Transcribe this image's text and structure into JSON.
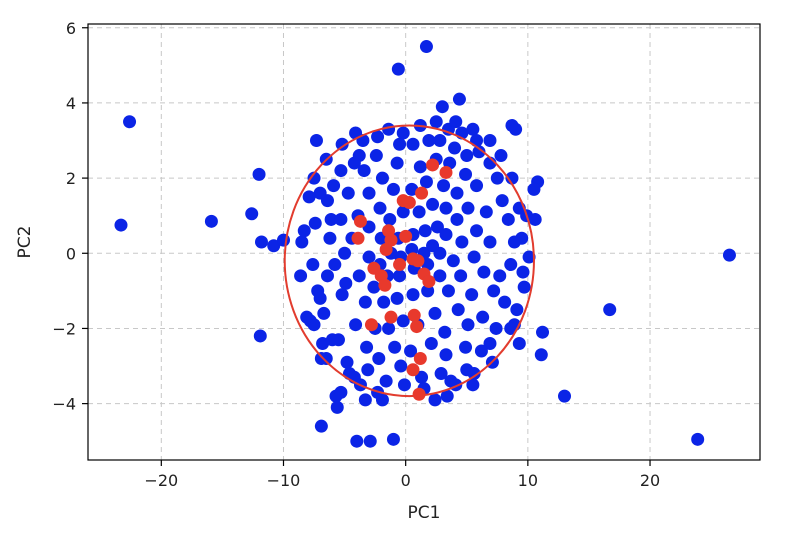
{
  "chart_data": {
    "type": "scatter",
    "title": "",
    "xlabel": "PC1",
    "ylabel": "PC2",
    "xlim": [
      -26,
      29
    ],
    "ylim": [
      -5.5,
      6.1
    ],
    "xticks": [
      -20,
      -10,
      0,
      10,
      20
    ],
    "yticks": [
      -4,
      -2,
      0,
      2,
      4,
      6
    ],
    "xtick_labels": [
      "−20",
      "−10",
      "0",
      "10",
      "20"
    ],
    "ytick_labels": [
      "−4",
      "−2",
      "0",
      "2",
      "4",
      "6"
    ],
    "grid": true,
    "colors": {
      "series_a": "#0b24e6",
      "series_b": "#e8392c",
      "ellipse": "#e23c2e"
    },
    "ellipse": {
      "center": [
        0.3,
        -0.2
      ],
      "semi_axis_x": 10.2,
      "semi_axis_y": 3.6
    },
    "series": [
      {
        "color": "#0b24e6",
        "points": [
          [
            1.7,
            5.5
          ],
          [
            -0.6,
            4.9
          ],
          [
            4.4,
            4.1
          ],
          [
            3.0,
            3.9
          ],
          [
            -22.6,
            3.5
          ],
          [
            -23.3,
            0.75
          ],
          [
            -15.9,
            0.85
          ],
          [
            -12.6,
            1.05
          ],
          [
            -12.0,
            2.1
          ],
          [
            -11.8,
            0.3
          ],
          [
            -10.8,
            0.2
          ],
          [
            -10.0,
            0.35
          ],
          [
            -8.5,
            0.3
          ],
          [
            -7.3,
            3.0
          ],
          [
            -7.5,
            2.0
          ],
          [
            -11.9,
            -2.2
          ],
          [
            -7.8,
            -1.8
          ],
          [
            -7.5,
            -1.9
          ],
          [
            -6.8,
            -2.4
          ],
          [
            -6.5,
            -2.8
          ],
          [
            -5.7,
            -3.8
          ],
          [
            -5.6,
            -4.1
          ],
          [
            -6.9,
            -4.6
          ],
          [
            -4.0,
            -5.0
          ],
          [
            -2.9,
            -5.0
          ],
          [
            -1.0,
            -4.95
          ],
          [
            2.4,
            -3.9
          ],
          [
            3.7,
            -3.4
          ],
          [
            5.0,
            -3.1
          ],
          [
            4.9,
            -2.5
          ],
          [
            6.9,
            -2.4
          ],
          [
            8.9,
            -1.9
          ],
          [
            9.1,
            -1.5
          ],
          [
            9.3,
            -2.4
          ],
          [
            11.1,
            -2.7
          ],
          [
            11.2,
            -2.1
          ],
          [
            13.0,
            -3.8
          ],
          [
            16.7,
            -1.5
          ],
          [
            26.5,
            -0.05
          ],
          [
            23.9,
            -4.95
          ],
          [
            10.8,
            1.9
          ],
          [
            10.5,
            1.7
          ],
          [
            9.9,
            1.0
          ],
          [
            10.6,
            0.9
          ],
          [
            9.5,
            0.4
          ],
          [
            10.1,
            -0.1
          ],
          [
            9.6,
            -0.5
          ],
          [
            8.7,
            3.4
          ],
          [
            9.0,
            3.3
          ],
          [
            6.9,
            3.0
          ],
          [
            5.5,
            3.3
          ],
          [
            4.6,
            3.2
          ],
          [
            3.5,
            3.3
          ],
          [
            -1.4,
            3.3
          ],
          [
            -2.3,
            3.1
          ],
          [
            -3.5,
            3.0
          ],
          [
            -3.8,
            2.6
          ],
          [
            -4.2,
            2.4
          ],
          [
            -5.3,
            2.2
          ],
          [
            -5.9,
            1.8
          ],
          [
            -6.4,
            1.4
          ],
          [
            -6.1,
            0.9
          ],
          [
            -6.2,
            0.4
          ],
          [
            -5.8,
            -0.3
          ],
          [
            -6.4,
            -0.6
          ],
          [
            -7.2,
            -1.0
          ],
          [
            -6.7,
            -1.6
          ],
          [
            -5.2,
            -1.1
          ],
          [
            -5.5,
            -2.3
          ],
          [
            -4.8,
            -2.9
          ],
          [
            -4.2,
            -3.3
          ],
          [
            -3.1,
            -3.1
          ],
          [
            -1.6,
            -3.4
          ],
          [
            -0.4,
            -3.0
          ],
          [
            1.3,
            -3.3
          ],
          [
            3.3,
            -2.7
          ],
          [
            5.1,
            -1.9
          ],
          [
            6.3,
            -1.7
          ],
          [
            7.2,
            -1.0
          ],
          [
            7.7,
            -0.6
          ],
          [
            8.6,
            -0.3
          ],
          [
            8.9,
            0.3
          ],
          [
            8.4,
            0.9
          ],
          [
            7.9,
            1.4
          ],
          [
            7.5,
            2.0
          ],
          [
            6.9,
            2.4
          ],
          [
            6.0,
            2.7
          ],
          [
            5.0,
            2.6
          ],
          [
            4.0,
            2.8
          ],
          [
            2.8,
            3.0
          ],
          [
            1.9,
            3.0
          ],
          [
            0.6,
            2.9
          ],
          [
            -0.5,
            2.9
          ],
          [
            -2.4,
            2.6
          ],
          [
            -3.4,
            2.2
          ],
          [
            -4.7,
            1.6
          ],
          [
            -5.3,
            0.9
          ],
          [
            -5.0,
            0.0
          ],
          [
            -4.9,
            -0.8
          ],
          [
            -4.1,
            -1.9
          ],
          [
            -3.2,
            -2.5
          ],
          [
            -2.2,
            -2.8
          ],
          [
            -0.9,
            -2.5
          ],
          [
            0.4,
            -2.6
          ],
          [
            2.1,
            -2.4
          ],
          [
            3.2,
            -2.1
          ],
          [
            4.3,
            -1.5
          ],
          [
            5.4,
            -1.1
          ],
          [
            6.4,
            -0.5
          ],
          [
            6.9,
            0.3
          ],
          [
            6.6,
            1.1
          ],
          [
            5.8,
            1.8
          ],
          [
            4.9,
            2.1
          ],
          [
            3.6,
            2.4
          ],
          [
            2.5,
            2.5
          ],
          [
            1.2,
            2.3
          ],
          [
            -0.7,
            2.4
          ],
          [
            -1.9,
            2.0
          ],
          [
            -3.0,
            1.6
          ],
          [
            -3.9,
            1.0
          ],
          [
            -4.4,
            0.4
          ],
          [
            -3.8,
            -0.6
          ],
          [
            -3.3,
            -1.3
          ],
          [
            -2.5,
            -2.0
          ],
          [
            -1.4,
            -2.0
          ],
          [
            -0.2,
            -1.8
          ],
          [
            1.0,
            -1.9
          ],
          [
            2.4,
            -1.6
          ],
          [
            3.5,
            -1.0
          ],
          [
            4.5,
            -0.6
          ],
          [
            5.6,
            -0.1
          ],
          [
            5.8,
            0.6
          ],
          [
            5.1,
            1.2
          ],
          [
            4.2,
            1.6
          ],
          [
            3.1,
            1.8
          ],
          [
            1.7,
            1.9
          ],
          [
            0.5,
            1.7
          ],
          [
            -1.0,
            1.7
          ],
          [
            -2.1,
            1.2
          ],
          [
            -3.0,
            0.7
          ],
          [
            -3.0,
            -0.1
          ],
          [
            -2.6,
            -0.9
          ],
          [
            -1.8,
            -1.3
          ],
          [
            -0.7,
            -1.2
          ],
          [
            0.6,
            -1.1
          ],
          [
            1.8,
            -1.0
          ],
          [
            2.8,
            -0.6
          ],
          [
            3.9,
            -0.2
          ],
          [
            4.6,
            0.3
          ],
          [
            4.2,
            0.9
          ],
          [
            3.3,
            1.2
          ],
          [
            2.2,
            1.3
          ],
          [
            1.1,
            1.1
          ],
          [
            -0.2,
            1.1
          ],
          [
            -1.3,
            0.9
          ],
          [
            -2.0,
            0.4
          ],
          [
            -2.1,
            -0.3
          ],
          [
            -1.5,
            -0.6
          ],
          [
            -0.5,
            -0.6
          ],
          [
            0.7,
            -0.4
          ],
          [
            1.8,
            -0.3
          ],
          [
            2.8,
            0.0
          ],
          [
            3.3,
            0.5
          ],
          [
            2.6,
            0.7
          ],
          [
            1.6,
            0.6
          ],
          [
            0.6,
            0.5
          ],
          [
            -0.6,
            0.4
          ],
          [
            -1.2,
            0.0
          ],
          [
            -0.4,
            -0.1
          ],
          [
            0.5,
            0.1
          ],
          [
            1.5,
            0.0
          ],
          [
            2.2,
            0.2
          ],
          [
            8.1,
            -1.3
          ],
          [
            7.4,
            -2.0
          ],
          [
            6.2,
            -2.6
          ],
          [
            5.6,
            -3.2
          ],
          [
            4.1,
            -3.5
          ],
          [
            2.9,
            -3.2
          ],
          [
            -0.1,
            -3.5
          ],
          [
            -2.3,
            -3.7
          ],
          [
            -3.7,
            -3.5
          ],
          [
            -4.6,
            -3.2
          ],
          [
            -6.0,
            -2.3
          ],
          [
            -7.0,
            -1.2
          ],
          [
            -7.6,
            -0.3
          ],
          [
            -7.4,
            0.8
          ],
          [
            -7.0,
            1.6
          ],
          [
            -6.5,
            2.5
          ],
          [
            -5.2,
            2.9
          ],
          [
            -4.1,
            3.2
          ],
          [
            -0.2,
            3.2
          ],
          [
            1.2,
            3.4
          ],
          [
            2.5,
            3.5
          ],
          [
            4.1,
            3.5
          ],
          [
            5.8,
            3.0
          ],
          [
            7.8,
            2.6
          ],
          [
            8.7,
            2.0
          ],
          [
            9.3,
            1.2
          ],
          [
            9.7,
            -0.9
          ],
          [
            8.6,
            -2.0
          ],
          [
            7.1,
            -2.9
          ],
          [
            5.5,
            -3.5
          ],
          [
            3.4,
            -3.8
          ],
          [
            1.5,
            -3.6
          ],
          [
            -1.9,
            -3.9
          ],
          [
            -3.3,
            -3.9
          ],
          [
            -5.3,
            -3.7
          ],
          [
            -6.9,
            -2.8
          ],
          [
            -8.1,
            -1.7
          ],
          [
            -8.6,
            -0.6
          ],
          [
            -8.3,
            0.6
          ],
          [
            -7.9,
            1.5
          ]
        ]
      },
      {
        "color": "#e8392c",
        "points": [
          [
            2.2,
            2.35
          ],
          [
            3.3,
            2.15
          ],
          [
            1.3,
            1.6
          ],
          [
            -0.2,
            1.4
          ],
          [
            0.3,
            1.35
          ],
          [
            -3.7,
            0.85
          ],
          [
            -3.9,
            0.4
          ],
          [
            -1.4,
            0.6
          ],
          [
            -1.2,
            0.35
          ],
          [
            -1.6,
            0.1
          ],
          [
            0.0,
            0.45
          ],
          [
            -2.6,
            -0.4
          ],
          [
            -2.0,
            -0.6
          ],
          [
            -1.7,
            -0.85
          ],
          [
            -0.5,
            -0.3
          ],
          [
            0.6,
            -0.15
          ],
          [
            1.0,
            -0.2
          ],
          [
            1.5,
            -0.55
          ],
          [
            1.9,
            -0.75
          ],
          [
            -1.2,
            -1.7
          ],
          [
            -2.8,
            -1.9
          ],
          [
            0.7,
            -1.65
          ],
          [
            0.9,
            -1.95
          ],
          [
            1.2,
            -2.8
          ],
          [
            0.6,
            -3.1
          ],
          [
            1.1,
            -3.75
          ]
        ]
      }
    ]
  }
}
